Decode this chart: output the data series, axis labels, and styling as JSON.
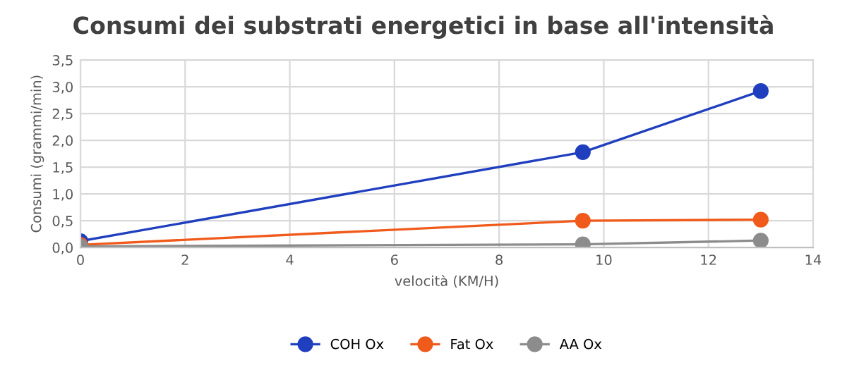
{
  "chart_data": {
    "type": "line",
    "title": "Consumi dei substrati energetici in base all'intensità",
    "xlabel": "velocità (KM/H)",
    "ylabel": "Consumi (grammi/min)",
    "x": [
      0,
      9.6,
      13
    ],
    "series": [
      {
        "name": "COH Ox",
        "color": "#1f3fbf",
        "values": [
          0.12,
          1.78,
          2.92
        ]
      },
      {
        "name": "Fat Ox",
        "color": "#f05a1a",
        "values": [
          0.05,
          0.5,
          0.52
        ]
      },
      {
        "name": "AA Ox",
        "color": "#8c8c8c",
        "values": [
          0.02,
          0.06,
          0.13
        ]
      }
    ],
    "xlim": [
      0,
      14
    ],
    "xticks": [
      0,
      2,
      4,
      6,
      8,
      10,
      12,
      14
    ],
    "ylim": [
      0,
      3.5
    ],
    "yticks": [
      {
        "value": 0,
        "label": "0,0"
      },
      {
        "value": 0.5,
        "label": "0,5"
      },
      {
        "value": 1,
        "label": "1,0"
      },
      {
        "value": 1.5,
        "label": "1,5"
      },
      {
        "value": 2,
        "label": "2,0"
      },
      {
        "value": 2.5,
        "label": "2,5"
      },
      {
        "value": 3,
        "label": "3,0"
      },
      {
        "value": 3.5,
        "label": "3,5"
      }
    ],
    "grid": true,
    "legend": "bottom",
    "marker": "circle",
    "line_style": "solid"
  }
}
